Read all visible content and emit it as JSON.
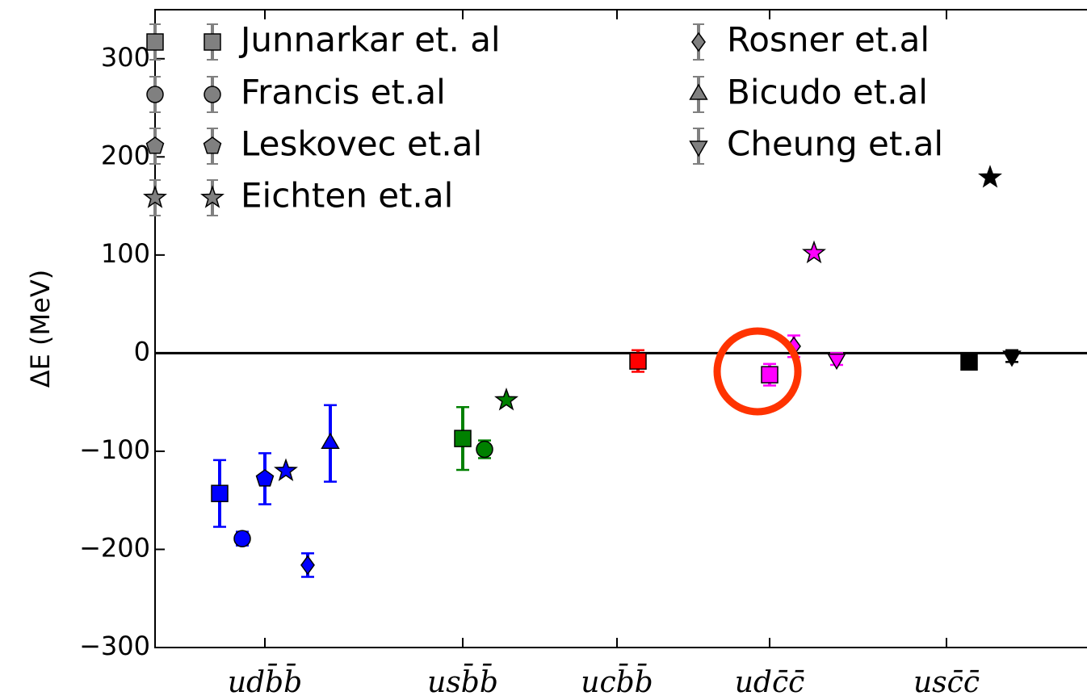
{
  "chart_data": {
    "type": "scatter",
    "ylabel": "ΔE (MeV)",
    "xlim": [
      0,
      11.54
    ],
    "xticks": [
      {
        "value": 1.36,
        "label": "udb̄b̄"
      },
      {
        "value": 3.81,
        "label": "usb̄b̄"
      },
      {
        "value": 5.72,
        "label": "ucb̄b̄"
      },
      {
        "value": 7.61,
        "label": "udc̄c̄"
      },
      {
        "value": 9.8,
        "label": "usc̄c̄"
      }
    ],
    "ylim": [
      -300,
      350
    ],
    "yticks": [
      {
        "value": -300,
        "label": "−300"
      },
      {
        "value": -200,
        "label": "−200"
      },
      {
        "value": -100,
        "label": "−100"
      },
      0,
      100,
      200,
      300
    ],
    "hlines": [
      0
    ],
    "legend": "upper left",
    "legend_color": "#808080",
    "series": [
      {
        "name": "Junnarkar et. al",
        "marker": "square",
        "x": [
          0.8,
          3.81,
          5.98,
          7.61,
          10.08
        ],
        "values": [
          -143,
          -87,
          -8,
          -22,
          -9
        ],
        "errors": [
          34,
          32,
          11,
          11,
          null
        ],
        "colors": [
          "#0000ff",
          "#008000",
          "#ff0000",
          "#ff00ff",
          "#000000"
        ]
      },
      {
        "name": "Francis et.al",
        "marker": "circle",
        "x": [
          1.08,
          4.08
        ],
        "values": [
          -189,
          -98
        ],
        "errors": [
          7,
          9
        ],
        "colors": [
          "#0000ff",
          "#008000"
        ]
      },
      {
        "name": "Leskovec et.al",
        "marker": "pentagon",
        "x": [
          1.36
        ],
        "values": [
          -128
        ],
        "errors": [
          26
        ],
        "colors": [
          "#0000ff"
        ]
      },
      {
        "name": "Eichten et.al",
        "marker": "star",
        "x": [
          1.62,
          4.35,
          8.16,
          10.34
        ],
        "values": [
          -120,
          -48,
          102,
          179
        ],
        "errors": [
          null,
          null,
          null,
          null
        ],
        "colors": [
          "#0000ff",
          "#008000",
          "#ff00ff",
          "#000000"
        ]
      },
      {
        "name": "Rosner et.al",
        "marker": "diamond",
        "x": [
          1.89,
          7.91
        ],
        "values": [
          -216,
          7
        ],
        "errors": [
          12,
          11
        ],
        "colors": [
          "#0000ff",
          "#ff00ff"
        ]
      },
      {
        "name": "Bicudo et.al",
        "marker": "triangle",
        "x": [
          2.17
        ],
        "values": [
          -92
        ],
        "errors": [
          39
        ],
        "colors": [
          "#0000ff"
        ]
      },
      {
        "name": "Cheung et.al",
        "marker": "triangle-down",
        "x": [
          8.44,
          10.61
        ],
        "values": [
          -6,
          -3
        ],
        "errors": [
          6,
          6
        ],
        "colors": [
          "#ff00ff",
          "#000000"
        ]
      }
    ]
  }
}
